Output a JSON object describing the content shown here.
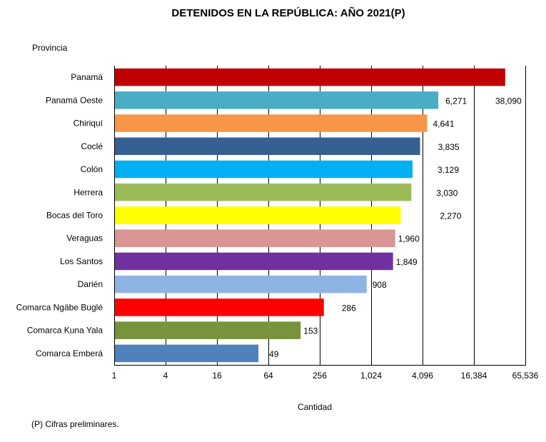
{
  "chart_data": {
    "type": "bar",
    "orientation": "horizontal",
    "title": "DETENIDOS EN LA REPÚBLICA: AÑO 2021(P)",
    "ylabel": "Provincia",
    "xlabel": "Cantidad",
    "x_scale": "log",
    "x_log_base": 4,
    "xlim": [
      1,
      65536
    ],
    "x_ticks": [
      1,
      4,
      16,
      64,
      256,
      1024,
      4096,
      16384,
      65536
    ],
    "x_tick_labels": [
      "1",
      "4",
      "16",
      "64",
      "256",
      "1,024",
      "4,096",
      "16,384",
      "65,536"
    ],
    "grid": "vertical",
    "legend": "none",
    "categories": [
      "Panamá",
      "Panamá Oeste",
      "Chiriquí",
      "Coclé",
      "Colón",
      "Herrera",
      "Bocas del Toro",
      "Veraguas",
      "Los Santos",
      "Darién",
      "Comarca Ngäbe Buglé",
      "Comarca Kuna Yala",
      "Comarca Emberá"
    ],
    "values": [
      38090,
      6271,
      4641,
      3835,
      3129,
      3030,
      2270,
      1960,
      1849,
      908,
      286,
      153,
      49
    ],
    "data_labels": [
      "38,090",
      "6,271",
      "4,641",
      "3,835",
      "3,129",
      "3,030",
      "2,270",
      "1,960",
      "1,849",
      "908",
      "286",
      "153",
      "49"
    ],
    "colors": [
      "#c00000",
      "#4bacc6",
      "#f79646",
      "#366092",
      "#00b0f0",
      "#9bbb59",
      "#ffff00",
      "#d99694",
      "#7030a0",
      "#8eb4e3",
      "#ff0000",
      "#77933c",
      "#4f81bd"
    ],
    "footnote": "(P) Cifras  preliminares."
  }
}
